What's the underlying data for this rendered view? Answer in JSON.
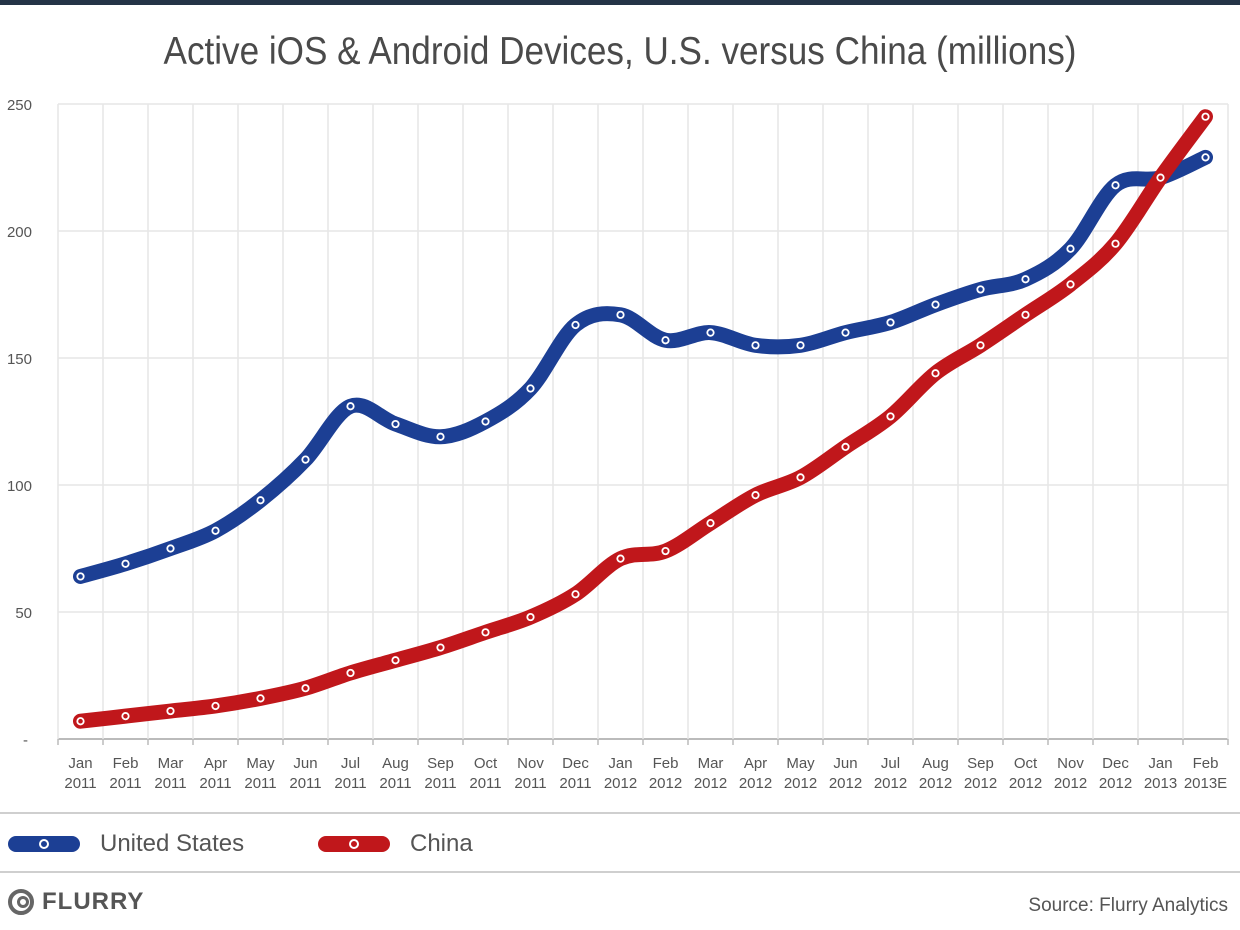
{
  "chart_data": {
    "type": "line",
    "title": "Active iOS & Android Devices, U.S. versus China (millions)",
    "xlabel": "",
    "ylabel": "",
    "categories": [
      [
        "Jan",
        "2011"
      ],
      [
        "Feb",
        "2011"
      ],
      [
        "Mar",
        "2011"
      ],
      [
        "Apr",
        "2011"
      ],
      [
        "May",
        "2011"
      ],
      [
        "Jun",
        "2011"
      ],
      [
        "Jul",
        "2011"
      ],
      [
        "Aug",
        "2011"
      ],
      [
        "Sep",
        "2011"
      ],
      [
        "Oct",
        "2011"
      ],
      [
        "Nov",
        "2011"
      ],
      [
        "Dec",
        "2011"
      ],
      [
        "Jan",
        "2012"
      ],
      [
        "Feb",
        "2012"
      ],
      [
        "Mar",
        "2012"
      ],
      [
        "Apr",
        "2012"
      ],
      [
        "May",
        "2012"
      ],
      [
        "Jun",
        "2012"
      ],
      [
        "Jul",
        "2012"
      ],
      [
        "Aug",
        "2012"
      ],
      [
        "Sep",
        "2012"
      ],
      [
        "Oct",
        "2012"
      ],
      [
        "Nov",
        "2012"
      ],
      [
        "Dec",
        "2012"
      ],
      [
        "Jan",
        "2013"
      ],
      [
        "Feb",
        "2013E"
      ]
    ],
    "ylim": [
      0,
      250
    ],
    "yticks": [
      {
        "value": 0,
        "label": "-"
      },
      {
        "value": 50,
        "label": "50"
      },
      {
        "value": 100,
        "label": "100"
      },
      {
        "value": 150,
        "label": "150"
      },
      {
        "value": 200,
        "label": "200"
      },
      {
        "value": 250,
        "label": "250"
      }
    ],
    "grid": true,
    "legend_position": "bottom",
    "series": [
      {
        "name": "United States",
        "color": "#1c3f94",
        "values": [
          64,
          69,
          75,
          82,
          94,
          110,
          131,
          124,
          119,
          125,
          138,
          163,
          167,
          157,
          160,
          155,
          155,
          160,
          164,
          171,
          177,
          181,
          193,
          218,
          221,
          229
        ]
      },
      {
        "name": "China",
        "color": "#c0171b",
        "values": [
          7,
          9,
          11,
          13,
          16,
          20,
          26,
          31,
          36,
          42,
          48,
          57,
          71,
          74,
          85,
          96,
          103,
          115,
          127,
          144,
          155,
          167,
          179,
          195,
          221,
          245
        ]
      }
    ]
  },
  "footer": {
    "logo_text": "FLURRY",
    "source": "Source: Flurry Analytics"
  }
}
